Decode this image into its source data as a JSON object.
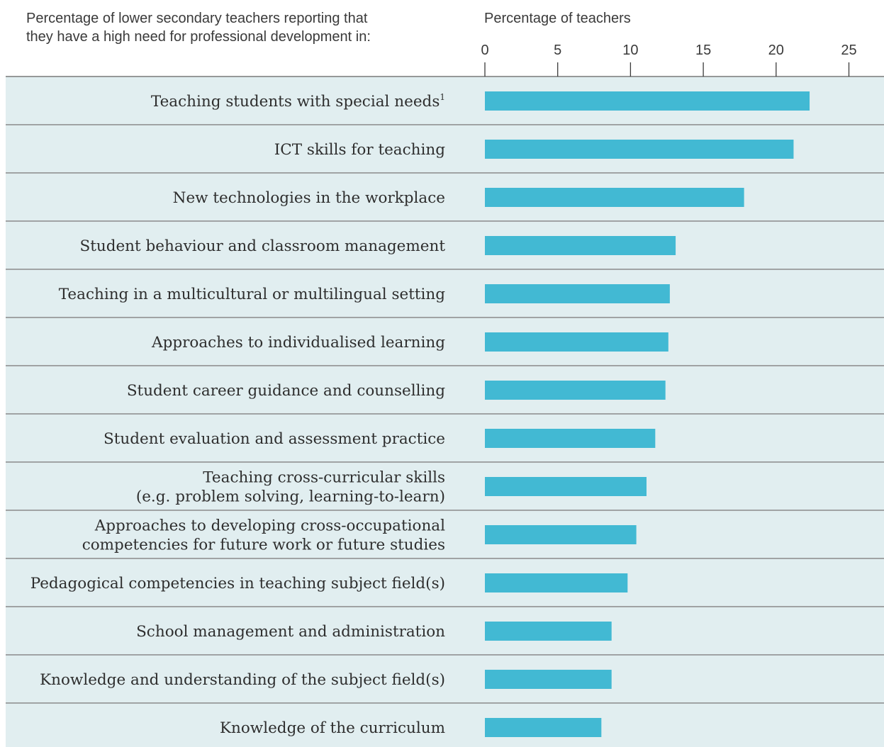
{
  "header": {
    "left_text": "Percentage of lower secondary teachers reporting that\nthey have a high need for professional development in:",
    "axis_title": "Percentage of teachers"
  },
  "colors": {
    "bar": "#42b9d3",
    "row_bg": "#e1eef0",
    "separator": "#6b6b6b",
    "text": "#2e2e2e"
  },
  "chart_data": {
    "type": "bar",
    "orientation": "horizontal",
    "title": "Percentage of lower secondary teachers reporting that they have a high need for professional development in:",
    "xlabel": "Percentage of teachers",
    "xlim": [
      0,
      25
    ],
    "xticks": [
      0,
      5,
      10,
      15,
      20,
      25
    ],
    "categories": [
      "Teaching students with special needs",
      "ICT skills for teaching",
      "New technologies in the workplace",
      "Student behaviour and classroom management",
      "Teaching in a multicultural or multilingual setting",
      "Approaches to individualised learning",
      "Student career guidance and counselling",
      "Student evaluation and assessment practice",
      "Teaching cross-curricular skills (e.g. problem solving, learning-to-learn)",
      "Approaches to developing cross-occupational competencies for future work or future studies",
      "Pedagogical competencies in teaching subject field(s)",
      "School management and administration",
      "Knowledge and understanding of the subject field(s)",
      "Knowledge of the curriculum"
    ],
    "category_display": [
      {
        "lines": [
          "Teaching students with special needs"
        ],
        "superscript": "1"
      },
      {
        "lines": [
          "ICT skills for teaching"
        ]
      },
      {
        "lines": [
          "New technologies in the workplace"
        ]
      },
      {
        "lines": [
          "Student behaviour and classroom management"
        ]
      },
      {
        "lines": [
          "Teaching in a multicultural or multilingual setting"
        ]
      },
      {
        "lines": [
          "Approaches to individualised learning"
        ]
      },
      {
        "lines": [
          "Student career guidance and counselling"
        ]
      },
      {
        "lines": [
          "Student evaluation and assessment practice"
        ]
      },
      {
        "lines": [
          "Teaching cross-curricular skills",
          "(e.g. problem solving, learning-to-learn)"
        ]
      },
      {
        "lines": [
          "Approaches to developing cross-occupational",
          "competencies for future work or future studies"
        ]
      },
      {
        "lines": [
          "Pedagogical competencies in teaching subject field(s)"
        ]
      },
      {
        "lines": [
          "School management and administration"
        ]
      },
      {
        "lines": [
          "Knowledge and understanding of the subject field(s)"
        ]
      },
      {
        "lines": [
          "Knowledge of the curriculum"
        ]
      }
    ],
    "values": [
      22.3,
      21.2,
      17.8,
      13.1,
      12.7,
      12.6,
      12.4,
      11.7,
      11.1,
      10.4,
      9.8,
      8.7,
      8.7,
      8.0
    ],
    "grid": false,
    "legend": "none"
  }
}
